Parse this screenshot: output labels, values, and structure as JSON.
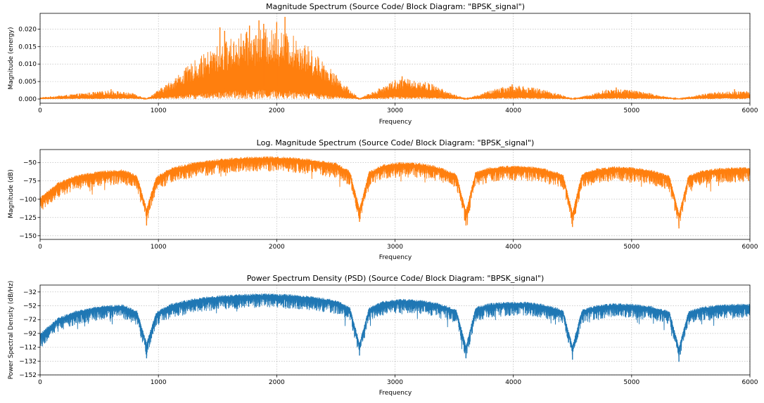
{
  "chart_data": [
    {
      "type": "line",
      "title": "Magnitude Spectrum (Source Code/ Block Diagram: \"BPSK_signal\")",
      "xlabel": "Frequency",
      "ylabel": "Magnitude (energy)",
      "xlim": [
        0,
        6000
      ],
      "ylim": [
        -0.0012,
        0.0245
      ],
      "xticks": [
        0,
        1000,
        2000,
        3000,
        4000,
        5000,
        6000
      ],
      "yticks": [
        0.0,
        0.005,
        0.01,
        0.015,
        0.02
      ],
      "ytick_labels": [
        "0.000",
        "0.005",
        "0.010",
        "0.015",
        "0.020"
      ],
      "grid": true,
      "color": "#ff7f0e",
      "envelope": {
        "x": [
          0,
          300,
          600,
          800,
          900,
          1100,
          1300,
          1500,
          1700,
          1900,
          2050,
          2200,
          2400,
          2550,
          2700,
          2850,
          3000,
          3150,
          3300,
          3450,
          3600,
          3750,
          3900,
          4050,
          4250,
          4400,
          4500,
          4650,
          4800,
          4950,
          5100,
          5300,
          5400,
          5550,
          5700,
          5850,
          6000
        ],
        "y": [
          0.0004,
          0.0013,
          0.0022,
          0.0014,
          0.0001,
          0.0045,
          0.0095,
          0.0135,
          0.0165,
          0.0175,
          0.017,
          0.015,
          0.0095,
          0.0045,
          0.0001,
          0.0025,
          0.005,
          0.005,
          0.004,
          0.0018,
          0.0001,
          0.0016,
          0.0032,
          0.0034,
          0.0025,
          0.0012,
          0.0001,
          0.0012,
          0.0025,
          0.0025,
          0.0018,
          0.0006,
          0.0001,
          0.001,
          0.0018,
          0.0019,
          0.002
        ]
      },
      "peaks": {
        "x": [
          600,
          1520,
          1560,
          1770,
          1850,
          1890,
          2000,
          2070,
          3060,
          3990,
          4870,
          5870
        ],
        "y": [
          0.0028,
          0.0205,
          0.0195,
          0.021,
          0.0225,
          0.0215,
          0.022,
          0.0235,
          0.0065,
          0.0042,
          0.0033,
          0.0028
        ]
      }
    },
    {
      "type": "line",
      "title": "Log. Magnitude Spectrum (Source Code/ Block Diagram: \"BPSK_signal\")",
      "xlabel": "Frequency",
      "ylabel": "Magnitude (dB)",
      "xlim": [
        0,
        6000
      ],
      "ylim": [
        -155,
        -32
      ],
      "xticks": [
        0,
        1000,
        2000,
        3000,
        4000,
        5000,
        6000
      ],
      "yticks": [
        -150,
        -125,
        -100,
        -75,
        -50
      ],
      "ytick_labels": [
        "−150",
        "−125",
        "−100",
        "−75",
        "−50"
      ],
      "grid": true,
      "color": "#ff7f0e",
      "envelope": {
        "x": [
          0,
          150,
          300,
          500,
          700,
          820,
          900,
          980,
          1100,
          1300,
          1500,
          1700,
          1900,
          2100,
          2300,
          2500,
          2620,
          2700,
          2780,
          2900,
          3050,
          3200,
          3350,
          3520,
          3600,
          3680,
          3800,
          3950,
          4100,
          4250,
          4420,
          4500,
          4580,
          4700,
          4850,
          5000,
          5150,
          5320,
          5400,
          5480,
          5600,
          5750,
          5900,
          6000
        ],
        "y": [
          -100,
          -80,
          -70,
          -64,
          -62,
          -70,
          -115,
          -72,
          -60,
          -52,
          -48,
          -45,
          -44,
          -45,
          -48,
          -53,
          -64,
          -115,
          -65,
          -55,
          -52,
          -53,
          -57,
          -68,
          -118,
          -65,
          -59,
          -57,
          -57,
          -60,
          -68,
          -120,
          -67,
          -61,
          -58,
          -59,
          -62,
          -70,
          -122,
          -70,
          -63,
          -60,
          -59,
          -59
        ]
      },
      "dips": {
        "x": [
          900,
          2700,
          3600,
          4500,
          5400
        ],
        "y": [
          -136,
          -131,
          -136,
          -138,
          -140
        ]
      }
    },
    {
      "type": "line",
      "title": "Power Spectrum Density (PSD) (Source Code/ Block Diagram: \"BPSK_signal\")",
      "xlabel": "Frequency",
      "ylabel": "Power Spectral Density (dB/Hz)",
      "xlim": [
        0,
        6000
      ],
      "ylim": [
        -152,
        -22
      ],
      "xticks": [
        0,
        1000,
        2000,
        3000,
        4000,
        5000,
        6000
      ],
      "yticks": [
        -152,
        -132,
        -112,
        -92,
        -72,
        -52,
        -32
      ],
      "ytick_labels": [
        "−152",
        "−132",
        "−112",
        "−92",
        "−72",
        "−52",
        "−32"
      ],
      "grid": true,
      "color": "#1f77b4",
      "envelope": {
        "x": [
          0,
          150,
          300,
          500,
          700,
          820,
          900,
          980,
          1100,
          1300,
          1500,
          1700,
          1900,
          2100,
          2300,
          2500,
          2620,
          2700,
          2780,
          2900,
          3050,
          3200,
          3350,
          3520,
          3600,
          3680,
          3800,
          3950,
          4100,
          4250,
          4420,
          4500,
          4580,
          4700,
          4850,
          5000,
          5150,
          5320,
          5400,
          5480,
          5600,
          5750,
          5900,
          6000
        ],
        "y": [
          -95,
          -72,
          -62,
          -55,
          -53,
          -62,
          -108,
          -64,
          -52,
          -44,
          -40,
          -38,
          -37,
          -38,
          -41,
          -46,
          -57,
          -108,
          -57,
          -48,
          -45,
          -46,
          -50,
          -60,
          -112,
          -57,
          -51,
          -49,
          -49,
          -52,
          -60,
          -112,
          -60,
          -54,
          -51,
          -52,
          -55,
          -62,
          -114,
          -62,
          -56,
          -53,
          -52,
          -52
        ]
      },
      "dips": {
        "x": [
          900,
          2700,
          3600,
          4500,
          5400
        ],
        "y": [
          -128,
          -124,
          -128,
          -130,
          -133
        ]
      }
    }
  ]
}
